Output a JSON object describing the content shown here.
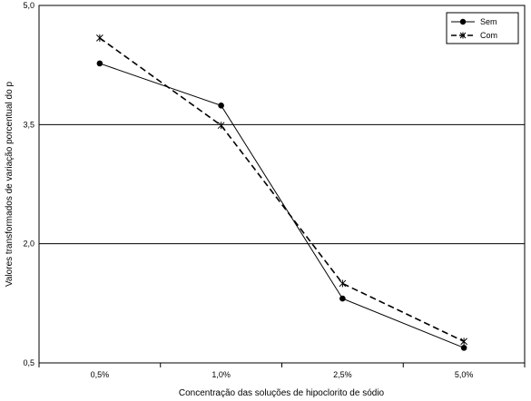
{
  "chart_data": {
    "type": "line",
    "categories": [
      "0,5%",
      "1,0%",
      "2,5%",
      "5,0%"
    ],
    "series": [
      {
        "name": "Sem",
        "values": [
          4.27,
          3.74,
          1.31,
          0.69
        ],
        "style": "solid",
        "marker": "circle",
        "color": "#000000"
      },
      {
        "name": "Com",
        "values": [
          4.59,
          3.49,
          1.5,
          0.77
        ],
        "style": "dashed",
        "marker": "star",
        "color": "#000000"
      }
    ],
    "xlabel": "Concentração das soluções de hipoclorito de sódio",
    "ylabel": "Valores transformados de variação porcentual do p",
    "ylim": [
      0.5,
      5.0
    ],
    "yticks": [
      "0,5",
      "2,0",
      "3,5",
      "5,0"
    ],
    "ytick_values": [
      0.5,
      2.0,
      3.5,
      5.0
    ],
    "grid": "horizontal",
    "legend_position": "top-right"
  }
}
